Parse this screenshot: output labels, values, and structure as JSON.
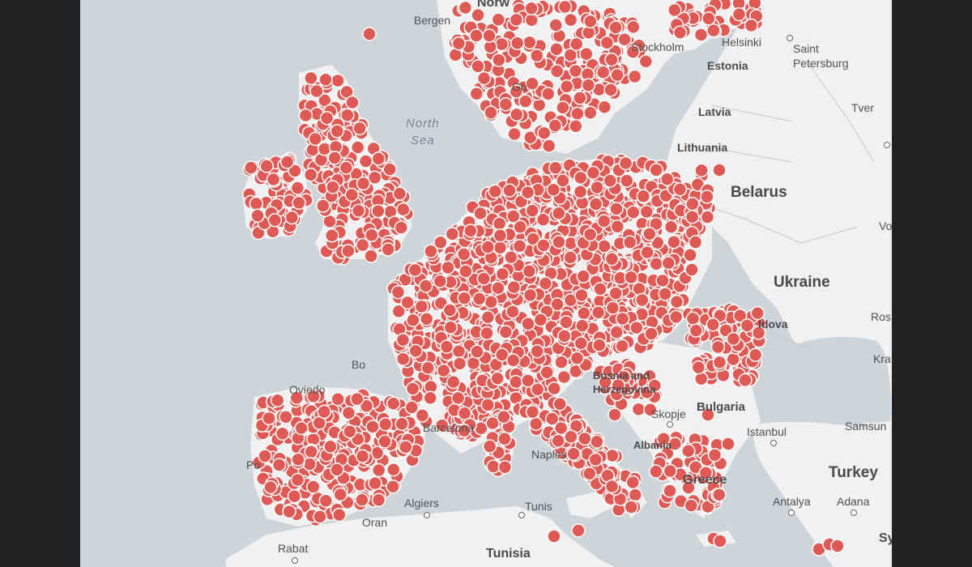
{
  "map": {
    "labels": {
      "norway": "Norw",
      "bergen": "Bergen",
      "stockholm": "Stockholm",
      "helsinki": "Helsinki",
      "saint": "Saint",
      "petersburg": "Petersburg",
      "estonia": "Estonia",
      "goteborg": "Gö",
      "north_sea_1": "North",
      "north_sea_2": "Sea",
      "latvia": "Latvia",
      "tver": "Tver",
      "lithuania": "Lithuania",
      "belarus": "Belarus",
      "vo": "Vo",
      "ukraine": "Ukraine",
      "moldova": "ldova",
      "ros": "Ros",
      "kra": "Kra",
      "bordeaux": "Bo",
      "bosnia_1": "Bosnia and",
      "bosnia_2": "Herzegovina",
      "bulgaria": "Bulgaria",
      "skopje": "Skopje",
      "istanbul": "Istanbul",
      "samsun": "Samsun",
      "barcelona": "Barcelona",
      "albania": "Albania",
      "naples": "Naples",
      "turkey": "Turkey",
      "greece": "Greece",
      "portugal": "Po",
      "oviedo": "Oviedo",
      "algiers": "Algiers",
      "tunis": "Tunis",
      "antalya": "Antalya",
      "adana": "Adana",
      "oran": "Oran",
      "rabat": "Rabat",
      "tunisia": "Tunisia",
      "syria": "Sy"
    },
    "colors": {
      "water": "#cfd4d8",
      "land": "#f1f1f1",
      "border": "#bcbcbc",
      "marker": "#e05a55",
      "marker_stroke": "#ffffff"
    },
    "marker_icon": "circle-marker"
  }
}
